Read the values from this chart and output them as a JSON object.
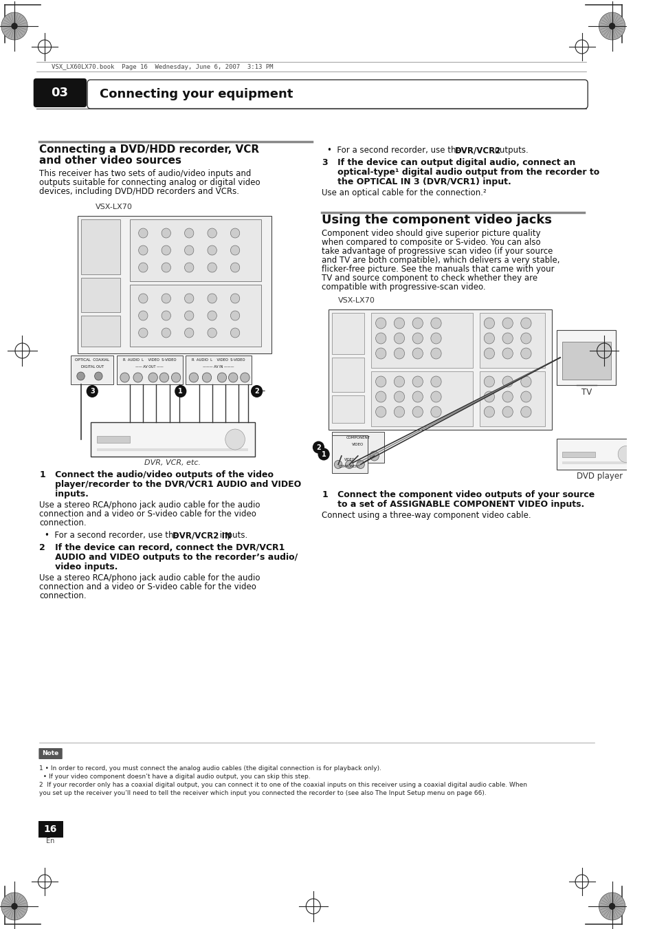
{
  "page_title": "Connecting your equipment",
  "chapter_num": "03",
  "header_text": "VSX_LX60LX70.book  Page 16  Wednesday, June 6, 2007  3:13 PM",
  "sec1_title_line1": "Connecting a DVD/HDD recorder, VCR",
  "sec1_title_line2": "and other video sources",
  "sec1_body": [
    "This receiver has two sets of audio/video inputs and",
    "outputs suitable for connecting analog or digital video",
    "devices, including DVD/HDD recorders and VCRs."
  ],
  "sec1_diag_label": "VSX-LX70",
  "sec1_device_label": "DVR, VCR, etc.",
  "step1_bold": "Connect the audio/video outputs of the video",
  "step1_bold2": "player/recorder to the DVR/VCR1 AUDIO and VIDEO",
  "step1_bold3": "inputs.",
  "step1_body": [
    "Use a stereo RCA/phono jack audio cable for the audio",
    "connection and a video or S-video cable for the video",
    "connection."
  ],
  "step1_bullet": "  •  For a second recorder, use the ",
  "step1_bullet_bold": "DVR/VCR2 IN",
  "step1_bullet_end": " inputs.",
  "step2_bold": "2   If the device can record, connect the DVR/VCR1",
  "step2_bold2": "AUDIO and VIDEO outputs to the recorder’s audio/",
  "step2_bold3": "video inputs.",
  "step2_body": [
    "Use a stereo RCA/phono jack audio cable for the audio",
    "connection and a video or S-video cable for the video",
    "connection."
  ],
  "rc_bullet": "  •  For a second recorder, use the ",
  "rc_bullet_bold": "DVR/VCR2",
  "rc_bullet_end": " outputs.",
  "rc_step3_line1": "3   If the device can output digital audio, connect an",
  "rc_step3_line2": "optical-type¹ digital audio output from the recorder to",
  "rc_step3_line3": "the OPTICAL IN 3 (DVR/VCR1) input.",
  "rc_step3_body": "Use an optical cable for the connection.²",
  "sec2_title": "Using the component video jacks",
  "sec2_body": [
    "Component video should give superior picture quality",
    "when compared to composite or S-video. You can also",
    "take advantage of progressive scan video (if your source",
    "and TV are both compatible), which delivers a very stable,",
    "flicker-free picture. See the manuals that came with your",
    "TV and source component to check whether they are",
    "compatible with progressive-scan video."
  ],
  "sec2_diag_label": "VSX-LX70",
  "sec2_tv_label": "TV",
  "sec2_dvd_label": "DVD player",
  "sec2_step1_bold": "1   Connect the component video outputs of your source",
  "sec2_step1_bold2": "to a set of ASSIGNABLE COMPONENT VIDEO inputs.",
  "sec2_step1_body": "Connect using a three-way component video cable.",
  "note_line1": "1 • In order to record, you must connect the analog audio cables (the digital connection is for playback only).",
  "note_line2": "  • If your video component doesn’t have a digital audio output, you can skip this step.",
  "note_line3": "2  If your recorder only has a coaxial digital output, you can connect it to one of the coaxial inputs on this receiver using a coaxial digital audio cable. When",
  "note_line4": "you set up the receiver you’ll need to tell the receiver which input you connected the recorder to (see also The Input Setup menu on page 66).",
  "page_num": "16",
  "page_sub": "En"
}
